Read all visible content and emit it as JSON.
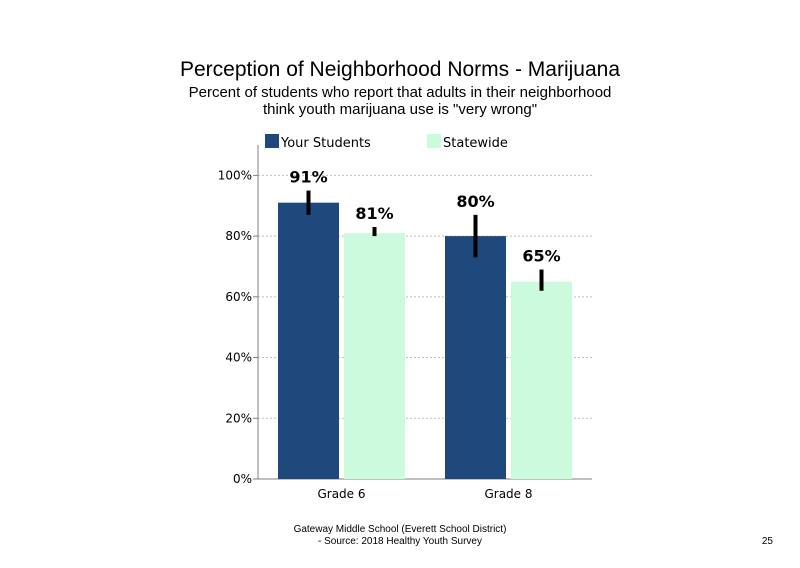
{
  "slide": {
    "title": "Perception of Neighborhood Norms - Marijuana",
    "subtitle_line1": "Percent of students who report that adults in their neighborhood",
    "subtitle_line2": "think youth marijuana use is \"very wrong\"",
    "footer_line1": "Gateway Middle School (Everett School District)",
    "footer_line2": "- Source: 2018 Healthy Youth Survey",
    "page_number": "25"
  },
  "chart_data": {
    "type": "bar",
    "categories": [
      "Grade 6",
      "Grade 8"
    ],
    "series": [
      {
        "name": "Your Students",
        "values": [
          91,
          80
        ],
        "labels": [
          "91%",
          "80%"
        ],
        "error": [
          [
            87,
            95
          ],
          [
            73,
            87
          ]
        ],
        "color": "#1f497d"
      },
      {
        "name": "Statewide",
        "values": [
          81,
          65
        ],
        "labels": [
          "81%",
          "65%"
        ],
        "error": [
          [
            80,
            83
          ],
          [
            62,
            69
          ]
        ],
        "color": "#ccfadc"
      }
    ],
    "yticks": [
      "0%",
      "20%",
      "40%",
      "60%",
      "80%",
      "100%"
    ],
    "ylim": [
      0,
      110
    ],
    "ytick_values": [
      0,
      20,
      40,
      60,
      80,
      100
    ],
    "grid": "dashed horizontal",
    "legend_position": "top"
  }
}
